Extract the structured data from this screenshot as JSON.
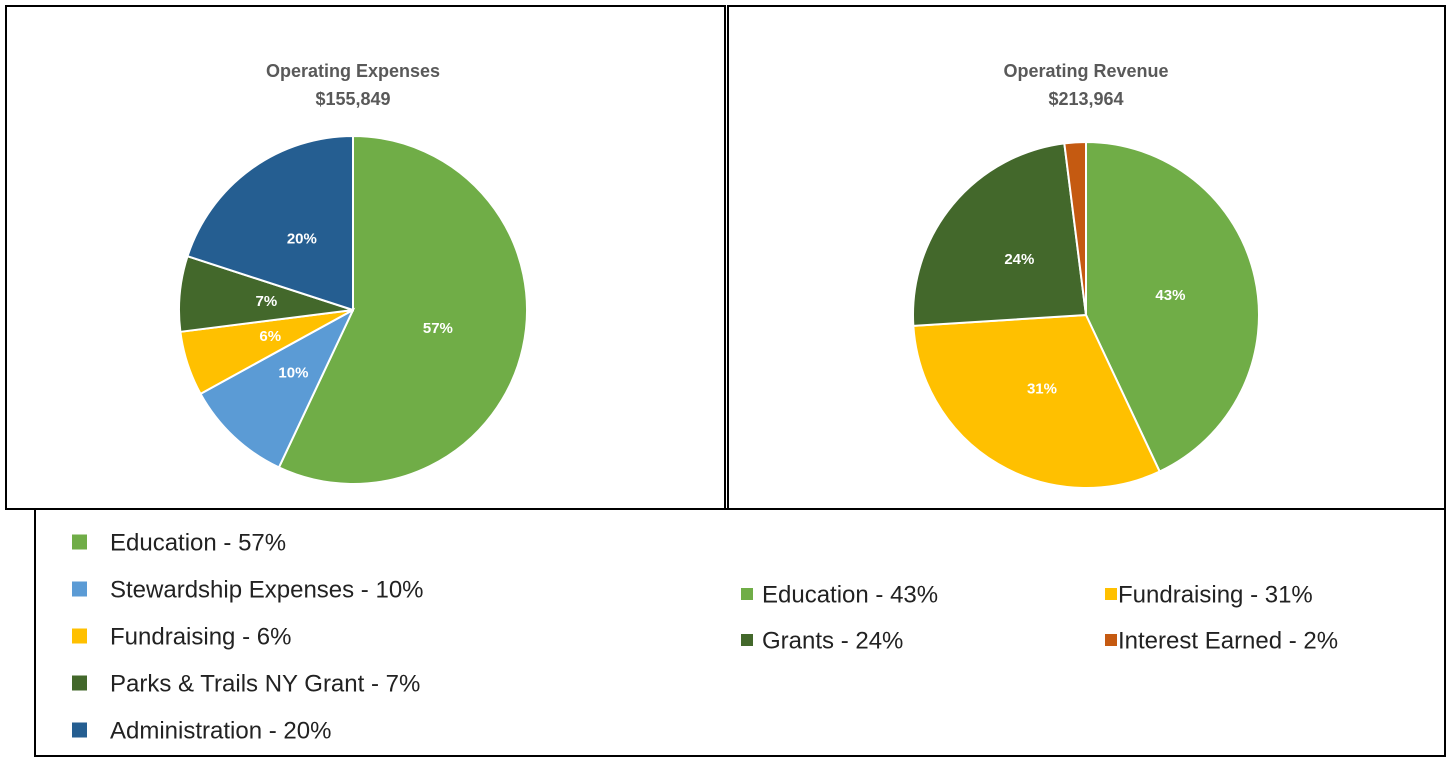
{
  "chart_data": [
    {
      "type": "pie",
      "title": "Operating Expenses",
      "subtitle": "$155,849",
      "categories": [
        "Education",
        "Stewardship Expenses",
        "Fundraising",
        "Parks & Trails NY Grant",
        "Administration"
      ],
      "values": [
        57,
        10,
        6,
        7,
        20
      ],
      "value_labels": [
        "57%",
        "10%",
        "6%",
        "7%",
        "20%"
      ],
      "colors": [
        "#70ad47",
        "#5b9bd5",
        "#ffc000",
        "#43682b",
        "#255e91"
      ],
      "legend_labels": [
        "Education - 57%",
        "Stewardship Expenses - 10%",
        "Fundraising - 6%",
        "Parks & Trails NY Grant - 7%",
        "Administration - 20%"
      ]
    },
    {
      "type": "pie",
      "title": "Operating Revenue",
      "subtitle": "$213,964",
      "categories": [
        "Education",
        "Fundraising",
        "Grants",
        "Interest Earned"
      ],
      "values": [
        43,
        31,
        24,
        2
      ],
      "value_labels": [
        "43%",
        "31%",
        "24%",
        null
      ],
      "colors": [
        "#70ad47",
        "#ffc000",
        "#43682b",
        "#c55a11"
      ],
      "legend_labels": [
        "Education - 43%",
        "Fundraising - 31%",
        "Grants - 24%",
        "Interest Earned - 2%"
      ]
    }
  ]
}
